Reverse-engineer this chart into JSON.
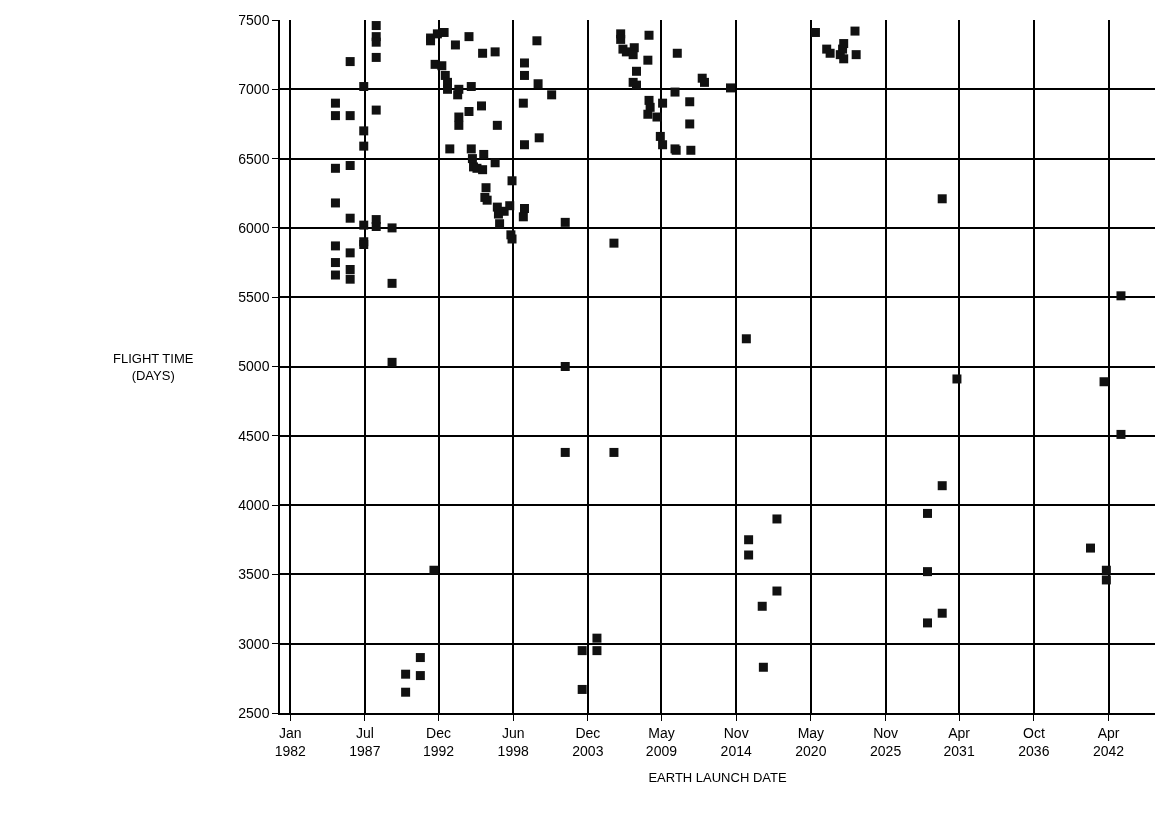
{
  "chart_data": {
    "type": "scatter",
    "xlabel": "EARTH LAUNCH DATE",
    "ylabel": "FLIGHT TIME\n(DAYS)",
    "marker": "square",
    "grid": true,
    "xlim": [
      "1981-04",
      "2045-09"
    ],
    "ylim": [
      2500,
      7500
    ],
    "xticks": [
      {
        "value": "1982-01",
        "label": "Jan\n1982"
      },
      {
        "value": "1987-07",
        "label": "Jul\n1987"
      },
      {
        "value": "1992-12",
        "label": "Dec\n1992"
      },
      {
        "value": "1998-06",
        "label": "Jun\n1998"
      },
      {
        "value": "2003-12",
        "label": "Dec\n2003"
      },
      {
        "value": "2009-05",
        "label": "May\n2009"
      },
      {
        "value": "2014-11",
        "label": "Nov\n2014"
      },
      {
        "value": "2020-05",
        "label": "May\n2020"
      },
      {
        "value": "2025-11",
        "label": "Nov\n2025"
      },
      {
        "value": "2031-04",
        "label": "Apr\n2031"
      },
      {
        "value": "2036-10",
        "label": "Oct\n2036"
      },
      {
        "value": "2042-04",
        "label": "Apr\n2042"
      }
    ],
    "yticks": [
      2500,
      3000,
      3500,
      4000,
      4500,
      5000,
      5500,
      6000,
      6500,
      7000,
      7500
    ],
    "series": [
      {
        "color": "#111111",
        "x": [
          "1985-05",
          "1985-05",
          "1985-05",
          "1985-05",
          "1985-05",
          "1985-05",
          "1985-05",
          "1986-06",
          "1986-06",
          "1986-06",
          "1986-06",
          "1986-06",
          "1986-06",
          "1986-06",
          "1987-06",
          "1987-06",
          "1987-06",
          "1987-06",
          "1987-06",
          "1987-06",
          "1988-05",
          "1988-05",
          "1988-05",
          "1988-05",
          "1988-05",
          "1988-05",
          "1988-05",
          "1989-07",
          "1989-07",
          "1989-07",
          "1990-07",
          "1990-07",
          "1991-08",
          "1991-08",
          "1992-08",
          "1992-05",
          "1992-05",
          "1992-11",
          "1992-09",
          "1993-03",
          "1993-06",
          "1993-08",
          "1993-08",
          "1993-10",
          "1993-05",
          "1994-03",
          "1994-05",
          "1994-06",
          "1994-06",
          "1994-06",
          "1995-03",
          "1995-05",
          "1995-03",
          "1995-05",
          "1995-06",
          "1995-07",
          "1995-10",
          "1996-02",
          "1996-03",
          "1996-03",
          "1996-04",
          "1996-06",
          "1996-05",
          "1996-07",
          "1997-02",
          "1997-04",
          "1997-02",
          "1997-04",
          "1997-05",
          "1997-06",
          "1997-10",
          "1998-03",
          "1998-05",
          "1998-04",
          "1998-05",
          "1999-03",
          "1999-04",
          "1999-04",
          "1999-04",
          "1999-04",
          "1999-03",
          "2000-03",
          "2000-04",
          "2000-05",
          "2001-04",
          "2002-04",
          "2002-04",
          "2002-04",
          "2003-07",
          "2003-07",
          "2004-08",
          "2004-08",
          "2005-11",
          "2005-11",
          "2006-05",
          "2006-05",
          "2006-07",
          "2006-10",
          "2007-05",
          "2007-04",
          "2007-07",
          "2007-04",
          "2007-07",
          "2008-06",
          "2008-05",
          "2008-06",
          "2008-07",
          "2008-05",
          "2009-01",
          "2009-06",
          "2009-04",
          "2009-06",
          "2010-06",
          "2010-05",
          "2010-05",
          "2010-07",
          "2011-06",
          "2011-06",
          "2011-07",
          "2012-05",
          "2012-07",
          "2014-06",
          "2015-08",
          "2015-10",
          "2015-10",
          "2016-10",
          "2016-11",
          "2017-11",
          "2017-11",
          "2020-09",
          "2021-07",
          "2021-10",
          "2022-07",
          "2022-09",
          "2022-10",
          "2022-10",
          "2023-08",
          "2023-09",
          "2028-12",
          "2028-12",
          "2028-12",
          "2030-01",
          "2030-01",
          "2030-01",
          "2031-02",
          "2040-12",
          "2041-12",
          "2042-02",
          "2042-02",
          "2043-03",
          "2043-03"
        ],
        "values": [
          6900,
          6810,
          6430,
          6180,
          5870,
          5750,
          5660,
          7200,
          6810,
          6450,
          6070,
          5820,
          5700,
          5630,
          7020,
          6700,
          6590,
          6020,
          5900,
          5880,
          7460,
          7380,
          7340,
          7230,
          6850,
          6060,
          6010,
          6000,
          5600,
          5030,
          2780,
          2650,
          2900,
          2770,
          3530,
          7370,
          7350,
          7400,
          7180,
          7170,
          7100,
          7050,
          7000,
          6570,
          7410,
          7320,
          6960,
          6800,
          6740,
          7000,
          7380,
          7020,
          6840,
          6570,
          6500,
          6440,
          6430,
          6880,
          7260,
          6420,
          6530,
          6290,
          6220,
          6200,
          7270,
          6740,
          6470,
          6150,
          6100,
          6030,
          6120,
          6160,
          6340,
          5950,
          5920,
          6900,
          7100,
          7190,
          6600,
          6140,
          6080,
          7350,
          7040,
          6650,
          6960,
          6040,
          5000,
          4380,
          2950,
          2670,
          3040,
          2950,
          5890,
          4380,
          7400,
          7360,
          7290,
          7270,
          7300,
          7250,
          7130,
          7050,
          7030,
          7390,
          7210,
          6920,
          6870,
          6820,
          6800,
          6900,
          6660,
          6600,
          6560,
          6570,
          6980,
          7260,
          6910,
          6750,
          6560,
          7080,
          7050,
          7010,
          5200,
          3750,
          3640,
          3270,
          2830,
          3900,
          3380,
          7410,
          7290,
          7260,
          7250,
          7290,
          7220,
          7330,
          7420,
          7250,
          3940,
          3520,
          3150,
          6210,
          4140,
          3220,
          4910,
          3690,
          4890,
          3530,
          3460,
          5510,
          4510
        ]
      }
    ]
  }
}
